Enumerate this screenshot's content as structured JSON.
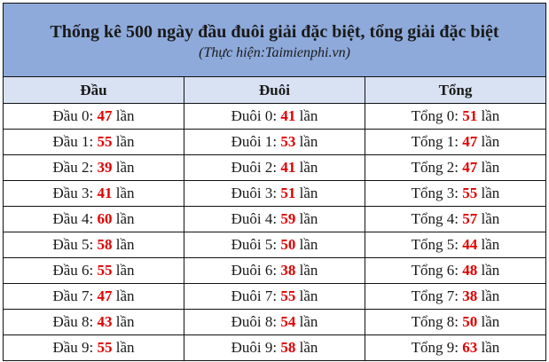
{
  "title": "Thống kê 500 ngày đầu đuôi giải đặc biệt, tổng giải đặc biệt",
  "subtitle": "(Thực hiện:Taimienphi.vn)",
  "columns": [
    "Đầu",
    "Đuôi",
    "Tổng"
  ],
  "unit": "lần",
  "accent_color": "#e00000",
  "rows": [
    {
      "dau": "Đầu 0:",
      "dau_n": "47",
      "duoi": "Đuôi 0:",
      "duoi_n": "41",
      "tong": "Tổng 0:",
      "tong_n": "51"
    },
    {
      "dau": "Đầu 1:",
      "dau_n": "55",
      "duoi": "Đuôi 1:",
      "duoi_n": "53",
      "tong": "Tổng 1:",
      "tong_n": "47"
    },
    {
      "dau": "Đầu 2:",
      "dau_n": "39",
      "duoi": "Đuôi 2:",
      "duoi_n": "41",
      "tong": "Tổng 2:",
      "tong_n": "47"
    },
    {
      "dau": "Đầu 3:",
      "dau_n": "41",
      "duoi": "Đuôi 3:",
      "duoi_n": "51",
      "tong": "Tổng 3:",
      "tong_n": "55"
    },
    {
      "dau": "Đầu 4:",
      "dau_n": "60",
      "duoi": "Đuôi 4:",
      "duoi_n": "59",
      "tong": "Tổng 4:",
      "tong_n": "57"
    },
    {
      "dau": "Đầu 5:",
      "dau_n": "58",
      "duoi": "Đuôi 5:",
      "duoi_n": "50",
      "tong": "Tổng 5:",
      "tong_n": "44"
    },
    {
      "dau": "Đầu 6:",
      "dau_n": "55",
      "duoi": "Đuôi 6:",
      "duoi_n": "38",
      "tong": "Tổng 6:",
      "tong_n": "48"
    },
    {
      "dau": "Đầu 7:",
      "dau_n": "47",
      "duoi": "Đuôi 7:",
      "duoi_n": "55",
      "tong": "Tổng 7:",
      "tong_n": "38"
    },
    {
      "dau": "Đầu 8:",
      "dau_n": "43",
      "duoi": "Đuôi 8:",
      "duoi_n": "54",
      "tong": "Tổng 8:",
      "tong_n": "50"
    },
    {
      "dau": "Đầu 9:",
      "dau_n": "55",
      "duoi": "Đuôi 9:",
      "duoi_n": "58",
      "tong": "Tổng 9:",
      "tong_n": "63"
    }
  ]
}
